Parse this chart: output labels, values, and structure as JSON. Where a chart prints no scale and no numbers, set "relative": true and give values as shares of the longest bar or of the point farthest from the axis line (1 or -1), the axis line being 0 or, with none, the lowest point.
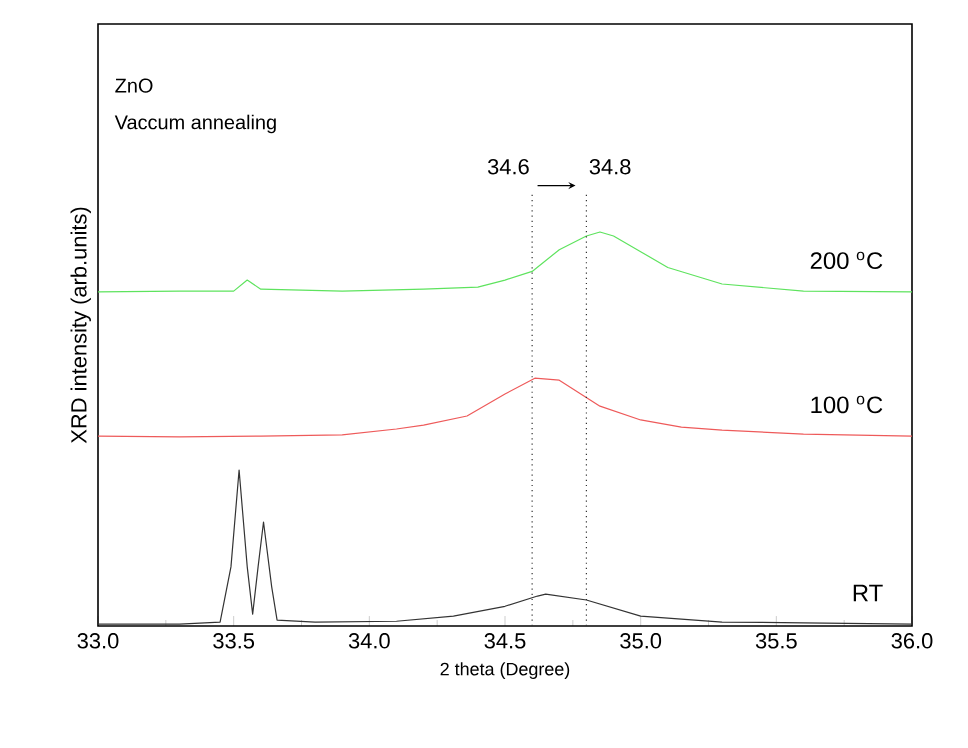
{
  "chart_data": {
    "type": "line",
    "relative": true,
    "xlabel": "2 theta (Degree)",
    "ylabel": "XRD intensity (arb.units)",
    "annotations": [
      "ZnO",
      "Vaccum annealing"
    ],
    "xlim": [
      33,
      36
    ],
    "xticks": [
      {
        "value": 33,
        "label": "33.0"
      },
      {
        "value": 33.5,
        "label": "33.5"
      },
      {
        "value": 34,
        "label": "34.0"
      },
      {
        "value": 34.5,
        "label": "34.5"
      },
      {
        "value": 35,
        "label": "35.0"
      },
      {
        "value": 35.5,
        "label": "35.5"
      },
      {
        "value": 36,
        "label": "36.0"
      }
    ],
    "tick_labels": "x",
    "grid": false,
    "legend": false,
    "marker": "none",
    "line_style": "solid",
    "ref_lines": [
      {
        "axis": "x",
        "value": 34.6,
        "label": "34.6",
        "line_style": "dotted",
        "color": "#333333"
      },
      {
        "axis": "x",
        "value": 34.8,
        "label": "34.8",
        "line_style": "dotted",
        "color": "#333333"
      }
    ],
    "series": [
      {
        "name": "200 $^{o}$C",
        "color": "#5ee35e",
        "x": [
          33.0,
          33.3,
          33.5,
          33.55,
          33.6,
          33.9,
          34.2,
          34.4,
          34.5,
          34.6,
          34.7,
          34.8,
          34.85,
          34.9,
          35.0,
          35.1,
          35.3,
          35.6,
          36.0
        ],
        "values": [
          0.848,
          0.85,
          0.85,
          0.878,
          0.855,
          0.85,
          0.855,
          0.86,
          0.878,
          0.9,
          0.955,
          0.99,
          1.0,
          0.99,
          0.95,
          0.91,
          0.868,
          0.85,
          0.848
        ]
      },
      {
        "name": "100 $^{o}$C",
        "color": "#ee5a5a",
        "x": [
          33.0,
          33.3,
          33.6,
          33.9,
          34.1,
          34.2,
          34.36,
          34.5,
          34.61,
          34.7,
          34.85,
          35.0,
          35.15,
          35.3,
          35.6,
          36.0
        ],
        "values": [
          0.482,
          0.48,
          0.482,
          0.485,
          0.5,
          0.51,
          0.533,
          0.589,
          0.629,
          0.624,
          0.558,
          0.523,
          0.505,
          0.497,
          0.487,
          0.482
        ]
      },
      {
        "name": "RT",
        "color": "#333333",
        "x": [
          33.0,
          33.3,
          33.45,
          33.49,
          33.52,
          33.55,
          33.57,
          33.59,
          33.61,
          33.64,
          33.66,
          33.8,
          34.1,
          34.31,
          34.5,
          34.62,
          34.65,
          34.8,
          35.0,
          35.3,
          35.6,
          36.0
        ],
        "values": [
          0.005,
          0.005,
          0.01,
          0.15,
          0.396,
          0.15,
          0.03,
          0.15,
          0.264,
          0.1,
          0.015,
          0.01,
          0.012,
          0.025,
          0.05,
          0.076,
          0.081,
          0.066,
          0.025,
          0.01,
          0.008,
          0.005
        ]
      }
    ]
  }
}
